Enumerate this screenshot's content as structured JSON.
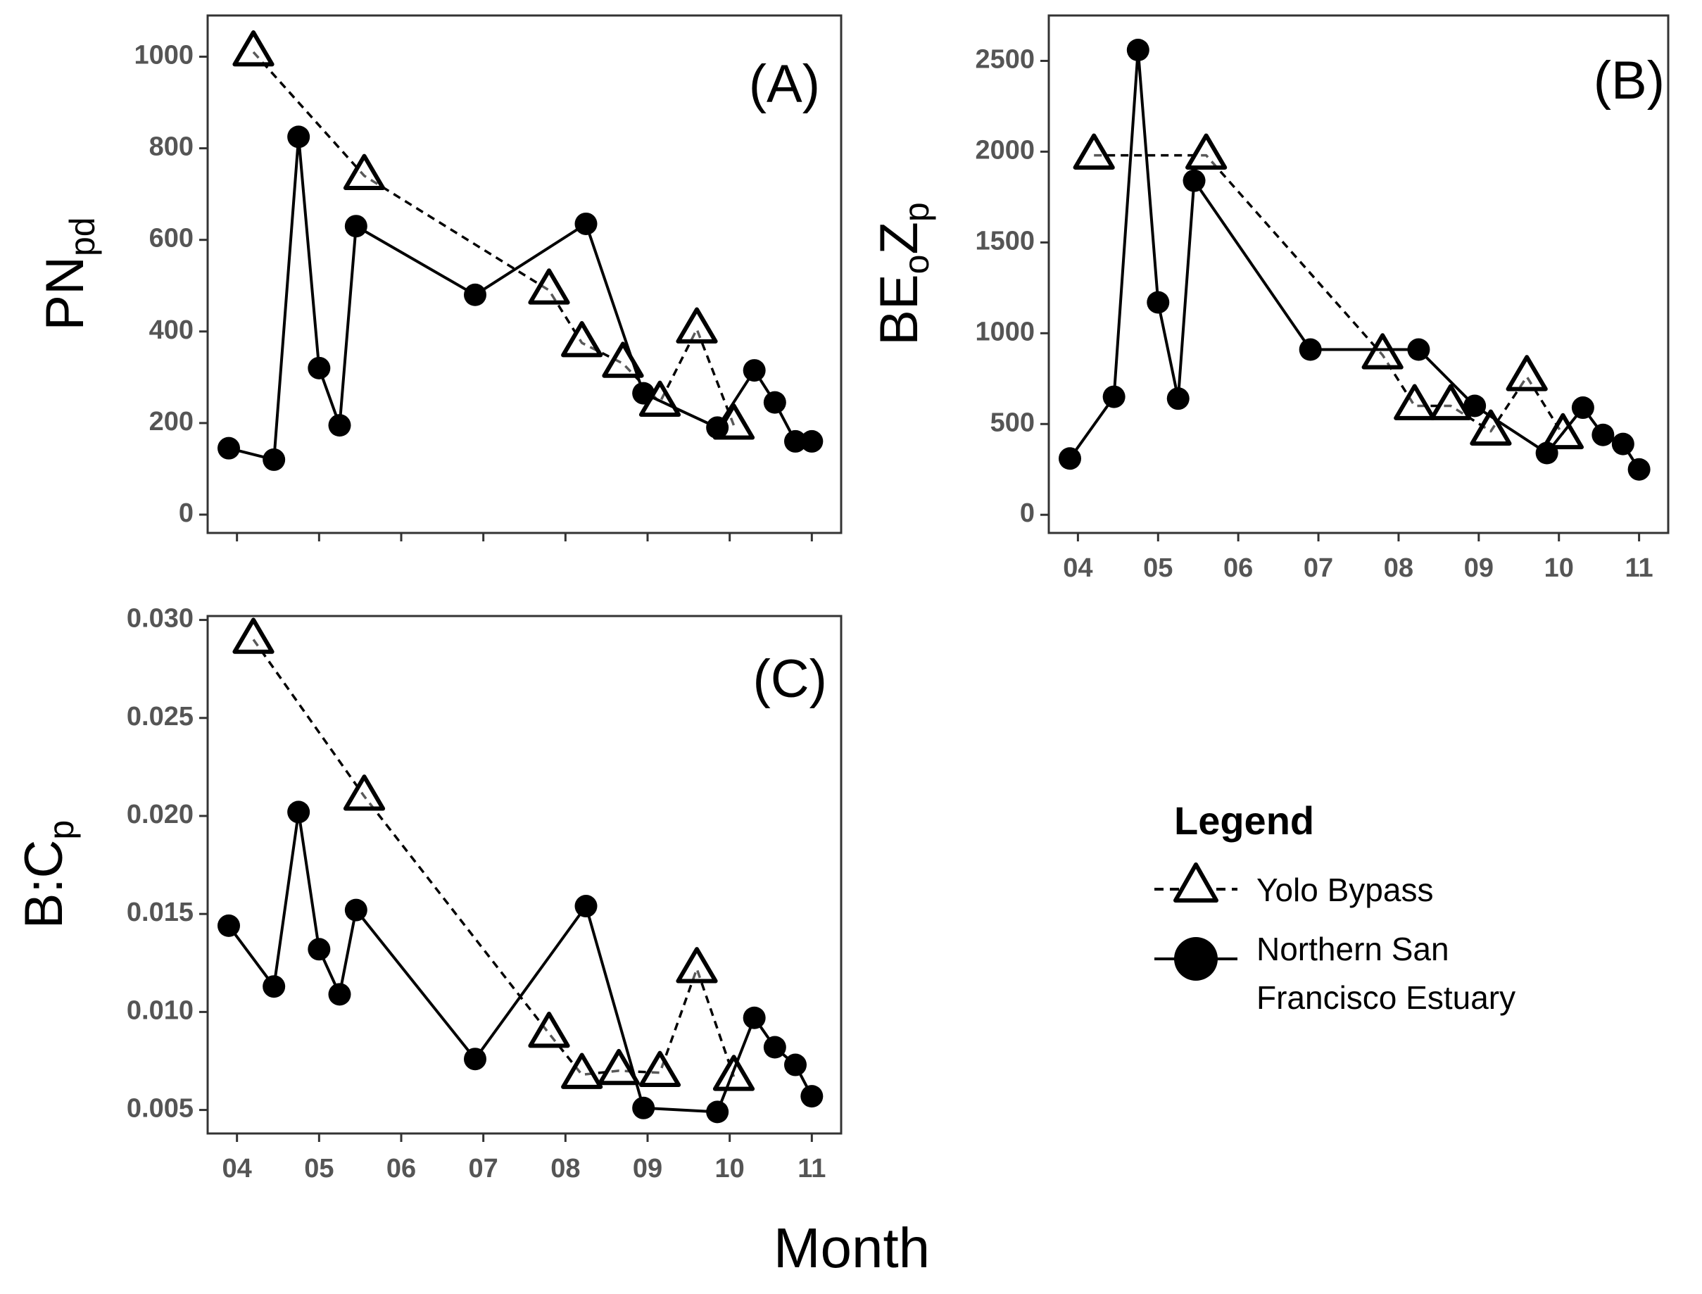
{
  "colors": {
    "series": "#000000",
    "axis_text": "#555555",
    "frame": "#333333"
  },
  "chart_data": [
    {
      "type": "line",
      "panel_label": "(A)",
      "ylabel": {
        "main": "PN",
        "sub": "pd"
      },
      "xlabel": "",
      "xlim": [
        3.9,
        11.1
      ],
      "ylim": [
        -40,
        1090
      ],
      "yticks": [
        "0",
        "200",
        "400",
        "600",
        "800",
        "1000"
      ],
      "xticks": [],
      "series": [
        {
          "name": "Yolo Bypass",
          "marker": "triangle-open",
          "line": "dashed",
          "x": [
            4.2,
            5.55,
            7.8,
            8.2,
            8.7,
            9.15,
            9.6,
            10.05
          ],
          "y": [
            1010,
            740,
            490,
            375,
            330,
            245,
            405,
            195
          ]
        },
        {
          "name": "Northern San Francisco Estuary",
          "marker": "circle-filled",
          "line": "solid",
          "x": [
            3.9,
            4.45,
            4.75,
            5.0,
            5.25,
            5.45,
            6.9,
            8.25,
            8.95,
            9.85,
            10.3,
            10.55,
            10.8,
            11.0
          ],
          "y": [
            145,
            120,
            825,
            320,
            195,
            630,
            480,
            635,
            265,
            190,
            315,
            245,
            160,
            160
          ]
        }
      ]
    },
    {
      "type": "line",
      "panel_label": "(B)",
      "ylabel": {
        "main": "BE",
        "sub1": "o",
        "main2": "Z",
        "sub2": "p"
      },
      "xlabel": "",
      "xlim": [
        3.9,
        11.1
      ],
      "ylim": [
        -100,
        2750
      ],
      "yticks": [
        "0",
        "500",
        "1000",
        "1500",
        "2000",
        "2500"
      ],
      "xticks": [
        "04",
        "05",
        "06",
        "07",
        "08",
        "09",
        "10",
        "11"
      ],
      "series": [
        {
          "name": "Yolo Bypass",
          "marker": "triangle-open",
          "line": "dashed",
          "x": [
            4.2,
            5.6,
            7.8,
            8.2,
            8.65,
            9.15,
            9.6,
            10.05
          ],
          "y": [
            1980,
            1980,
            880,
            600,
            600,
            460,
            760,
            440
          ]
        },
        {
          "name": "Northern San Francisco Estuary",
          "marker": "circle-filled",
          "line": "solid",
          "x": [
            3.9,
            4.45,
            4.75,
            5.0,
            5.25,
            5.45,
            6.9,
            8.25,
            8.95,
            9.85,
            10.3,
            10.55,
            10.8,
            11.0
          ],
          "y": [
            310,
            650,
            2560,
            1170,
            640,
            1840,
            910,
            910,
            600,
            340,
            590,
            440,
            390,
            250
          ]
        }
      ]
    },
    {
      "type": "line",
      "panel_label": "(C)",
      "ylabel": {
        "main": "B:C",
        "sub": "p"
      },
      "xlabel": "Month",
      "xlim": [
        3.9,
        11.1
      ],
      "ylim": [
        0.0038,
        0.0302
      ],
      "yticks": [
        "0.005",
        "0.010",
        "0.015",
        "0.020",
        "0.025",
        "0.030"
      ],
      "xticks": [
        "04",
        "05",
        "06",
        "07",
        "08",
        "09",
        "10",
        "11"
      ],
      "series": [
        {
          "name": "Yolo Bypass",
          "marker": "triangle-open",
          "line": "dashed",
          "x": [
            4.2,
            5.55,
            7.8,
            8.2,
            8.65,
            9.15,
            9.6,
            10.05
          ],
          "y": [
            0.029,
            0.021,
            0.0089,
            0.0068,
            0.007,
            0.0069,
            0.0122,
            0.0067
          ]
        },
        {
          "name": "Northern San Francisco Estuary",
          "marker": "circle-filled",
          "line": "solid",
          "x": [
            3.9,
            4.45,
            4.75,
            5.0,
            5.25,
            5.45,
            6.9,
            8.25,
            8.95,
            9.85,
            10.3,
            10.55,
            10.8,
            11.0
          ],
          "y": [
            0.0144,
            0.0113,
            0.0202,
            0.0132,
            0.0109,
            0.0152,
            0.0076,
            0.0154,
            0.0051,
            0.0049,
            0.0097,
            0.0082,
            0.0073,
            0.0057
          ]
        }
      ]
    }
  ],
  "legend": {
    "title": "Legend",
    "items": [
      {
        "series": "Yolo Bypass",
        "label_lines": [
          "Yolo Bypass"
        ]
      },
      {
        "series": "Northern San Francisco Estuary",
        "label_lines": [
          "Northern San",
          "Francisco Estuary"
        ]
      }
    ]
  }
}
